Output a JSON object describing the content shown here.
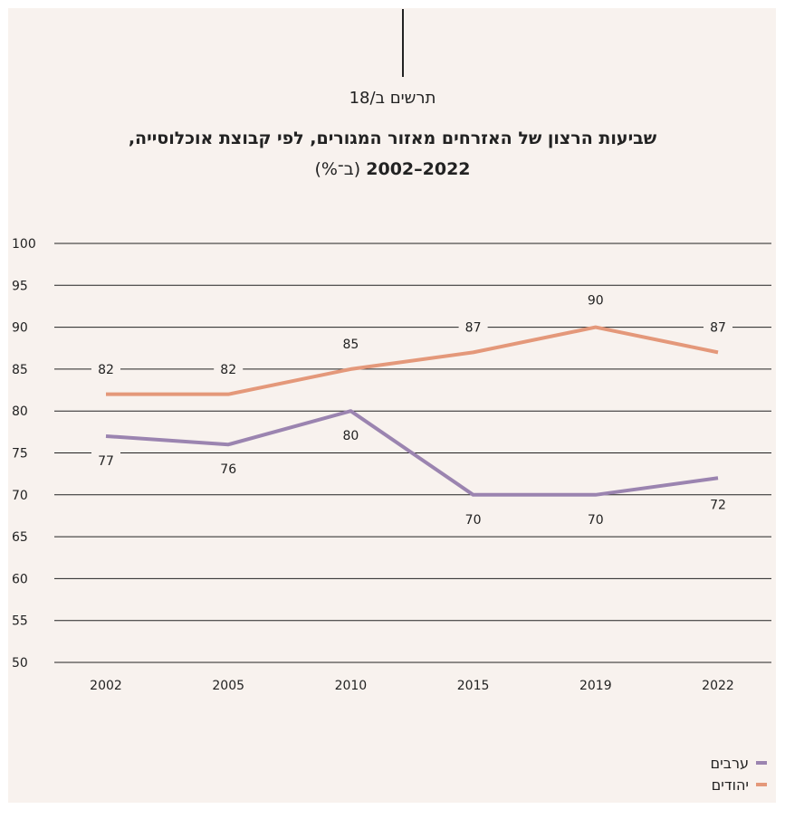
{
  "figure_label": "תרשים ב/18",
  "title_line1": "שביעות הרצון של האזרחים מאזור המגורים, לפי קבוצת אוכלוסייה,",
  "title_years": "2022–2002",
  "title_unit": "(ב־%)",
  "colors": {
    "arabs": "#9b84b0",
    "jews": "#e4987a",
    "grid": "#222222",
    "background": "#f8f2ee"
  },
  "chart_data": {
    "type": "line",
    "categories": [
      "2002",
      "2005",
      "2010",
      "2015",
      "2019",
      "2022"
    ],
    "series": [
      {
        "name": "יהודים",
        "values": [
          82,
          82,
          85,
          87,
          90,
          87
        ]
      },
      {
        "name": "ערבים",
        "values": [
          77,
          76,
          80,
          70,
          70,
          72
        ]
      }
    ],
    "ylim": [
      50,
      100
    ],
    "yticks": [
      "50",
      "55",
      "60",
      "65",
      "70",
      "75",
      "80",
      "85",
      "90",
      "95",
      "100"
    ],
    "grid": true,
    "legend_position": "bottom-right"
  },
  "legend": [
    {
      "label": "ערבים",
      "color": "#9b84b0"
    },
    {
      "label": "יהודים",
      "color": "#e4987a"
    }
  ]
}
